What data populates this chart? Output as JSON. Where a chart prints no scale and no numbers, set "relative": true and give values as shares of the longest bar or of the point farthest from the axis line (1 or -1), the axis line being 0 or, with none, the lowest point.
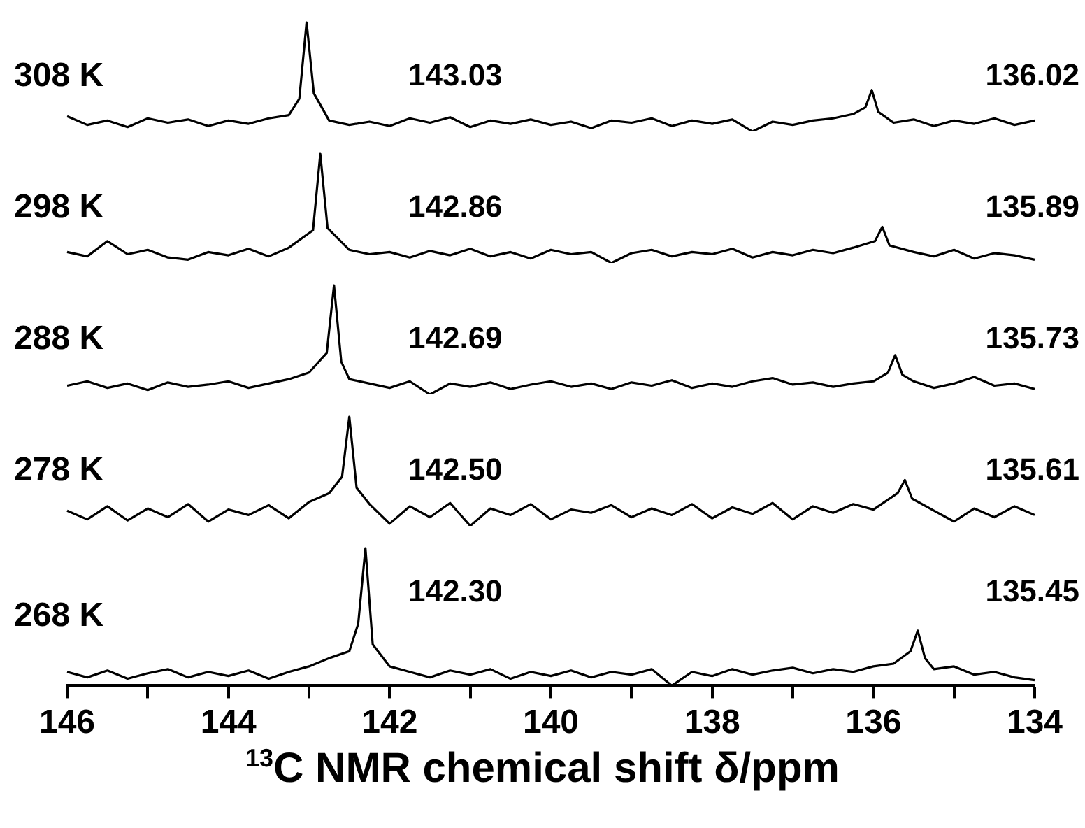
{
  "chart_data": [
    {
      "type": "line",
      "relative": true,
      "xlim": [
        146,
        134
      ],
      "tick_labels": false,
      "series": [
        {
          "name": "308 K",
          "color": "#000000",
          "x": [
            146,
            145.75,
            145.5,
            145.25,
            145,
            144.75,
            144.5,
            144.25,
            144,
            143.75,
            143.5,
            143.25,
            143.12,
            143.03,
            142.94,
            142.75,
            142.5,
            142.25,
            142,
            141.75,
            141.5,
            141.25,
            141,
            140.75,
            140.5,
            140.25,
            140,
            139.75,
            139.5,
            139.25,
            139,
            138.75,
            138.5,
            138.25,
            138,
            137.75,
            137.5,
            137.25,
            137,
            136.75,
            136.5,
            136.25,
            136.1,
            136.02,
            135.94,
            135.75,
            135.5,
            135.25,
            135,
            134.75,
            134.5,
            134.25,
            134
          ],
          "values": [
            0.14,
            0.06,
            0.1,
            0.04,
            0.12,
            0.08,
            0.11,
            0.05,
            0.1,
            0.07,
            0.12,
            0.15,
            0.3,
            1,
            0.35,
            0.1,
            0.06,
            0.09,
            0.05,
            0.12,
            0.08,
            0.13,
            0.04,
            0.1,
            0.07,
            0.11,
            0.06,
            0.09,
            0.03,
            0.1,
            0.08,
            0.12,
            0.05,
            0.1,
            0.07,
            0.11,
            0,
            0.09,
            0.06,
            0.1,
            0.12,
            0.16,
            0.22,
            0.38,
            0.18,
            0.08,
            0.11,
            0.05,
            0.1,
            0.07,
            0.12,
            0.06,
            0.1
          ]
        }
      ],
      "annotations": [
        "143.03",
        "136.02"
      ]
    },
    {
      "type": "line",
      "relative": true,
      "xlim": [
        146,
        134
      ],
      "tick_labels": false,
      "series": [
        {
          "name": "298 K",
          "color": "#000000",
          "x": [
            146,
            145.75,
            145.5,
            145.25,
            145,
            144.75,
            144.5,
            144.25,
            144,
            143.75,
            143.5,
            143.25,
            142.95,
            142.86,
            142.77,
            142.5,
            142.25,
            142,
            141.75,
            141.5,
            141.25,
            141,
            140.75,
            140.5,
            140.25,
            140,
            139.75,
            139.5,
            139.25,
            139,
            138.75,
            138.5,
            138.25,
            138,
            137.75,
            137.5,
            137.25,
            137,
            136.75,
            136.5,
            136.25,
            135.98,
            135.89,
            135.8,
            135.5,
            135.25,
            135,
            134.75,
            134.5,
            134.25,
            134
          ],
          "values": [
            0.1,
            0.06,
            0.2,
            0.08,
            0.12,
            0.05,
            0.03,
            0.1,
            0.07,
            0.13,
            0.06,
            0.14,
            0.3,
            1,
            0.32,
            0.12,
            0.08,
            0.1,
            0.05,
            0.11,
            0.07,
            0.13,
            0.06,
            0.1,
            0.04,
            0.12,
            0.08,
            0.1,
            0,
            0.09,
            0.12,
            0.06,
            0.1,
            0.08,
            0.13,
            0.05,
            0.1,
            0.07,
            0.12,
            0.09,
            0.14,
            0.2,
            0.33,
            0.16,
            0.1,
            0.06,
            0.12,
            0.04,
            0.09,
            0.07,
            0.03
          ]
        }
      ],
      "annotations": [
        "142.86",
        "135.89"
      ]
    },
    {
      "type": "line",
      "relative": true,
      "xlim": [
        146,
        134
      ],
      "tick_labels": false,
      "series": [
        {
          "name": "288 K",
          "color": "#000000",
          "x": [
            146,
            145.75,
            145.5,
            145.25,
            145,
            144.75,
            144.5,
            144.25,
            144,
            143.75,
            143.5,
            143.25,
            143,
            142.78,
            142.69,
            142.6,
            142.5,
            142.25,
            142,
            141.75,
            141.5,
            141.25,
            141,
            140.75,
            140.5,
            140.25,
            140,
            139.75,
            139.5,
            139.25,
            139,
            138.75,
            138.5,
            138.25,
            138,
            137.75,
            137.5,
            137.25,
            137,
            136.75,
            136.5,
            136.25,
            136,
            135.82,
            135.73,
            135.64,
            135.5,
            135.25,
            135,
            134.75,
            134.5,
            134.25,
            134
          ],
          "values": [
            0.08,
            0.12,
            0.06,
            0.1,
            0.04,
            0.11,
            0.07,
            0.09,
            0.12,
            0.06,
            0.1,
            0.14,
            0.2,
            0.38,
            1,
            0.3,
            0.14,
            0.1,
            0.06,
            0.12,
            0,
            0.1,
            0.07,
            0.11,
            0.05,
            0.09,
            0.12,
            0.07,
            0.1,
            0.05,
            0.11,
            0.08,
            0.13,
            0.06,
            0.1,
            0.07,
            0.12,
            0.15,
            0.09,
            0.11,
            0.07,
            0.1,
            0.12,
            0.2,
            0.36,
            0.18,
            0.12,
            0.06,
            0.1,
            0.16,
            0.08,
            0.1,
            0.05
          ]
        }
      ],
      "annotations": [
        "142.69",
        "135.73"
      ]
    },
    {
      "type": "line",
      "relative": true,
      "xlim": [
        146,
        134
      ],
      "tick_labels": false,
      "series": [
        {
          "name": "278 K",
          "color": "#000000",
          "x": [
            146,
            145.75,
            145.5,
            145.25,
            145,
            144.75,
            144.5,
            144.25,
            144,
            143.75,
            143.5,
            143.25,
            143,
            142.75,
            142.59,
            142.5,
            142.41,
            142.25,
            142,
            141.75,
            141.5,
            141.25,
            141,
            140.75,
            140.5,
            140.25,
            140,
            139.75,
            139.5,
            139.25,
            139,
            138.75,
            138.5,
            138.25,
            138,
            137.75,
            137.5,
            137.25,
            137,
            136.75,
            136.5,
            136.25,
            136,
            135.7,
            135.61,
            135.52,
            135.25,
            135,
            134.75,
            134.5,
            134.25,
            134
          ],
          "values": [
            0.14,
            0.06,
            0.18,
            0.05,
            0.16,
            0.08,
            0.2,
            0.04,
            0.15,
            0.1,
            0.19,
            0.07,
            0.22,
            0.3,
            0.45,
            1,
            0.35,
            0.2,
            0.02,
            0.18,
            0.08,
            0.21,
            0,
            0.16,
            0.1,
            0.2,
            0.06,
            0.15,
            0.12,
            0.19,
            0.08,
            0.16,
            0.1,
            0.2,
            0.07,
            0.17,
            0.11,
            0.21,
            0.06,
            0.18,
            0.12,
            0.2,
            0.15,
            0.3,
            0.42,
            0.25,
            0.14,
            0.04,
            0.16,
            0.08,
            0.18,
            0.1
          ]
        }
      ],
      "annotations": [
        "142.50",
        "135.61"
      ]
    },
    {
      "type": "line",
      "relative": true,
      "xlim": [
        146,
        134
      ],
      "xticks": [
        146,
        {
          "value": 145,
          "label": null
        },
        144,
        {
          "value": 143,
          "label": null
        },
        142,
        {
          "value": 141,
          "label": null
        },
        140,
        {
          "value": 139,
          "label": null
        },
        138,
        {
          "value": 137,
          "label": null
        },
        136,
        {
          "value": 135,
          "label": null
        },
        134
      ],
      "xlabel": "$^{13}$C NMR chemical shift δ/ppm",
      "series": [
        {
          "name": "268 K",
          "color": "#000000",
          "x": [
            146,
            145.75,
            145.5,
            145.25,
            145,
            144.75,
            144.5,
            144.25,
            144,
            143.75,
            143.5,
            143.25,
            143,
            142.75,
            142.5,
            142.39,
            142.3,
            142.21,
            142,
            141.75,
            141.5,
            141.25,
            141,
            140.75,
            140.5,
            140.25,
            140,
            139.75,
            139.5,
            139.25,
            139,
            138.75,
            138.5,
            138.25,
            138,
            137.75,
            137.5,
            137.25,
            137,
            136.75,
            136.5,
            136.25,
            136,
            135.75,
            135.54,
            135.45,
            135.36,
            135.25,
            135,
            134.75,
            134.5,
            134.25,
            134
          ],
          "values": [
            0.1,
            0.06,
            0.11,
            0.05,
            0.09,
            0.12,
            0.06,
            0.1,
            0.07,
            0.11,
            0.05,
            0.1,
            0.14,
            0.2,
            0.25,
            0.45,
            1,
            0.3,
            0.14,
            0.1,
            0.06,
            0.11,
            0.08,
            0.12,
            0.05,
            0.1,
            0.07,
            0.11,
            0.06,
            0.1,
            0.08,
            0.12,
            0,
            0.1,
            0.07,
            0.12,
            0.08,
            0.11,
            0.13,
            0.09,
            0.12,
            0.1,
            0.14,
            0.16,
            0.25,
            0.4,
            0.2,
            0.12,
            0.14,
            0.08,
            0.1,
            0.06,
            0.04
          ]
        }
      ],
      "annotations": [
        "142.30",
        "135.45"
      ]
    }
  ]
}
